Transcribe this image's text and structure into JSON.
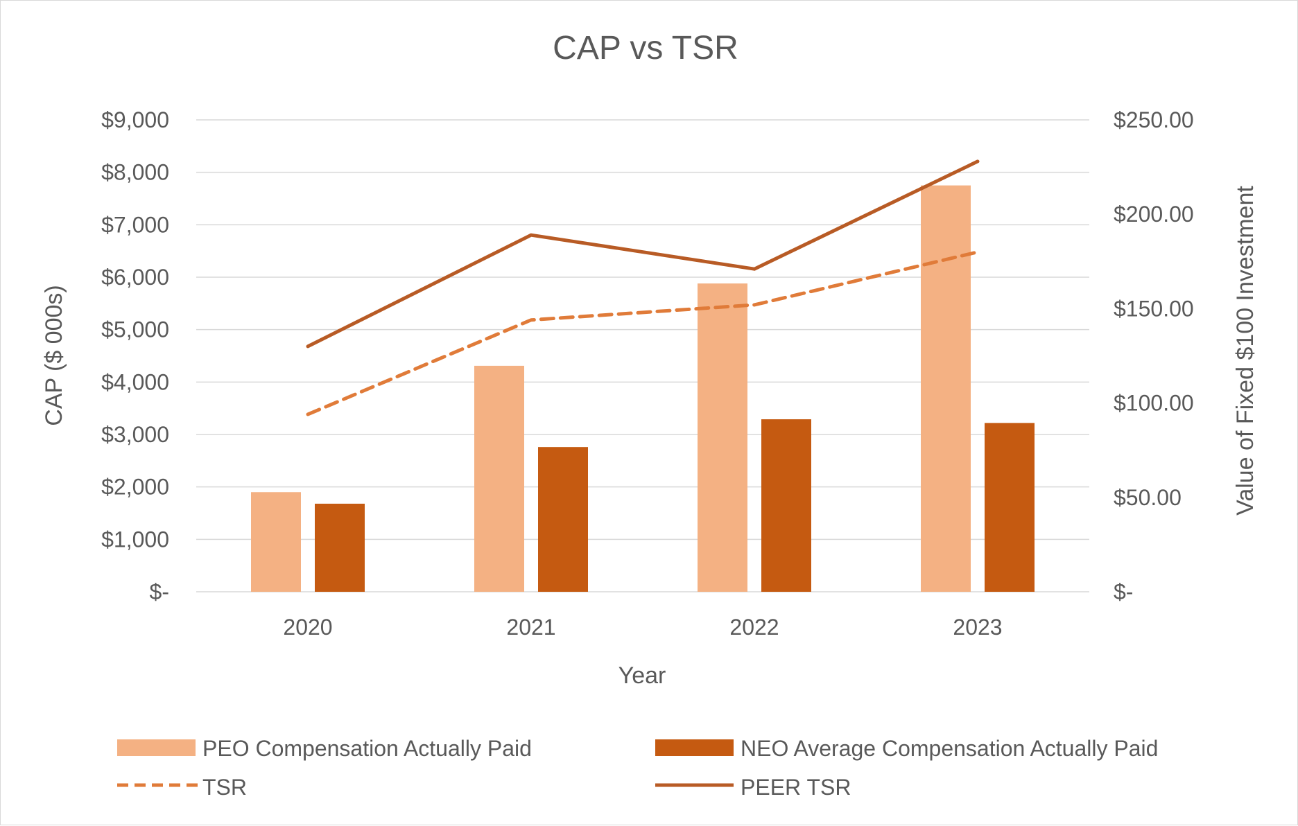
{
  "chart_data": {
    "type": "bar",
    "title": "CAP vs TSR",
    "xlabel": "Year",
    "ylabel": "CAP ($ 000s)",
    "y2label": "Value of Fixed $100 Investment",
    "categories": [
      "2020",
      "2021",
      "2022",
      "2023"
    ],
    "ylim": [
      0,
      9000
    ],
    "y2lim": [
      0,
      250
    ],
    "yticks": [
      0,
      1000,
      2000,
      3000,
      4000,
      5000,
      6000,
      7000,
      8000,
      9000
    ],
    "yticklabels": [
      "$-",
      "$1,000",
      "$2,000",
      "$3,000",
      "$4,000",
      "$5,000",
      "$6,000",
      "$7,000",
      "$8,000",
      "$9,000"
    ],
    "y2ticks": [
      0,
      50,
      100,
      150,
      200,
      250
    ],
    "y2ticklabels": [
      "$-",
      "$50.00",
      "$100.00",
      "$150.00",
      "$200.00",
      "$250.00"
    ],
    "grid": true,
    "legend_position": "bottom",
    "series": [
      {
        "name": "PEO Compensation Actually Paid",
        "type": "bar",
        "axis": "left",
        "color": "#f4b183",
        "values": [
          1900,
          4310,
          5880,
          7750
        ]
      },
      {
        "name": "NEO Average Compensation Actually Paid",
        "type": "bar",
        "axis": "left",
        "color": "#c55a11",
        "values": [
          1680,
          2760,
          3290,
          3220
        ]
      },
      {
        "name": "TSR",
        "type": "line",
        "style": "dashed",
        "axis": "right",
        "color": "#e07b39",
        "values": [
          94,
          144,
          152,
          180
        ]
      },
      {
        "name": "PEER TSR",
        "type": "line",
        "style": "solid",
        "axis": "right",
        "color": "#b85b25",
        "values": [
          130,
          189,
          171,
          228
        ]
      }
    ]
  }
}
